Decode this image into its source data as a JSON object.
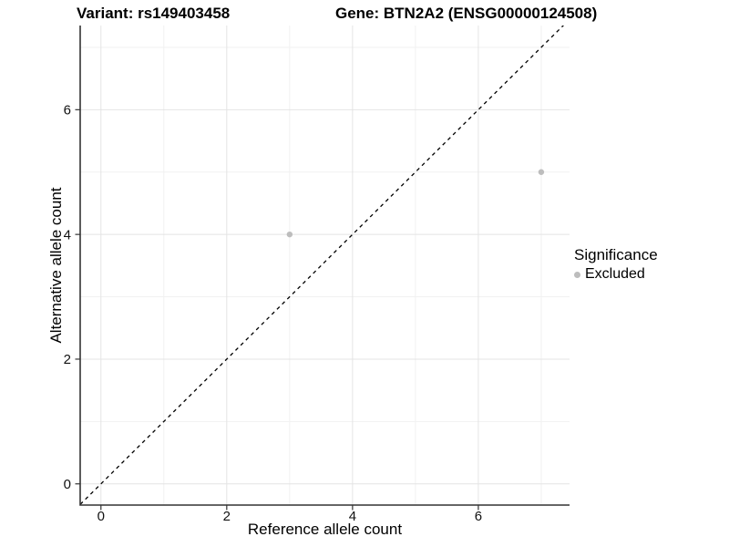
{
  "header": {
    "variant_title": "Variant: rs149403458",
    "gene_title": "Gene: BTN2A2 (ENSG00000124508)"
  },
  "chart_data": {
    "type": "scatter",
    "xlabel": "Reference allele count",
    "ylabel": "Alternative allele count",
    "x_ticks": [
      0,
      2,
      4,
      6
    ],
    "y_ticks": [
      0,
      2,
      4,
      6
    ],
    "x_minor_gridlines": [
      1,
      3,
      5,
      7
    ],
    "y_minor_gridlines": [
      1,
      3,
      5,
      7
    ],
    "xlim": [
      -0.33,
      7.45
    ],
    "ylim": [
      -0.34,
      7.35
    ],
    "points": [
      {
        "x": 3,
        "y": 4,
        "series": "Excluded"
      },
      {
        "x": 7,
        "y": 5,
        "series": "Excluded"
      }
    ],
    "reference_line": {
      "type": "identity",
      "slope": 1,
      "intercept": 0,
      "style": "dashed",
      "color": "#000000"
    },
    "legend": {
      "title": "Significance",
      "position": "right",
      "items": [
        {
          "label": "Excluded",
          "color": "#bdbdbd"
        }
      ]
    },
    "grid": true,
    "colors": {
      "point": "#bdbdbd",
      "major_grid": "#e4e4e4",
      "minor_grid": "#f1f1f1",
      "axis": "#333333",
      "text": "#000000",
      "background": "#ffffff"
    }
  }
}
